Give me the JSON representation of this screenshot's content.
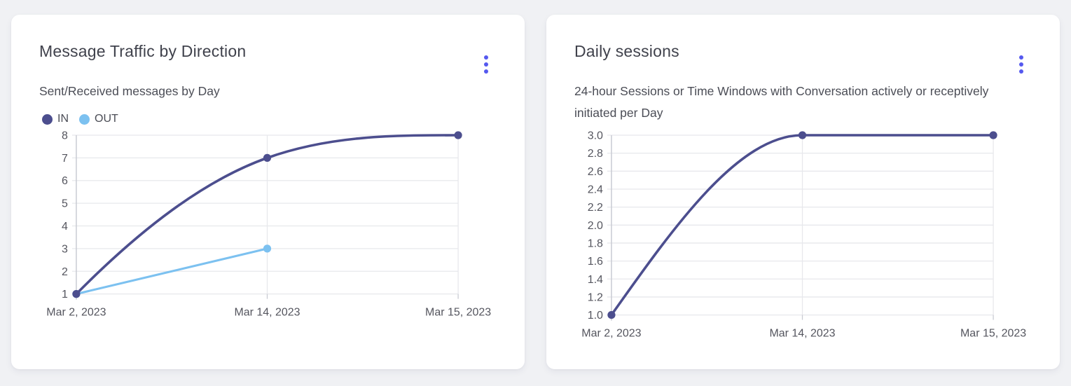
{
  "page_background": "#f0f1f4",
  "accent_color": "#5559ef",
  "cards": [
    {
      "title": "Message Traffic by Direction",
      "subtitle": "Sent/Received messages by Day",
      "menu_icon": "kebab-menu"
    },
    {
      "title": "Daily sessions",
      "subtitle": "24-hour Sessions or Time Windows with Conversation actively or receptively initiated per Day",
      "menu_icon": "kebab-menu"
    }
  ],
  "chart_data": [
    {
      "type": "line",
      "title": "Message Traffic by Direction",
      "subtitle": "Sent/Received messages by Day",
      "categories": [
        "Mar 2, 2023",
        "Mar 14, 2023",
        "Mar 15, 2023"
      ],
      "series": [
        {
          "name": "IN",
          "color": "#4c4e8e",
          "values": [
            1,
            7,
            8
          ]
        },
        {
          "name": "OUT",
          "color": "#7cc1f0",
          "values": [
            1,
            3,
            null
          ]
        }
      ],
      "ylim": [
        1,
        8
      ],
      "tick_step": 1,
      "tick_decimals": 0,
      "y_ticks": [
        1,
        2,
        3,
        4,
        5,
        6,
        7,
        8
      ],
      "grid": true,
      "smooth": true,
      "show_legend": true,
      "legend_position": "top-left",
      "xlabel": "",
      "ylabel": ""
    },
    {
      "type": "line",
      "title": "Daily sessions",
      "subtitle": "24-hour Sessions or Time Windows with Conversation actively or receptively initiated per Day",
      "categories": [
        "Mar 2, 2023",
        "Mar 14, 2023",
        "Mar 15, 2023"
      ],
      "series": [
        {
          "name": "Daily sessions",
          "color": "#4c4e8e",
          "values": [
            1.0,
            3.0,
            3.0
          ]
        }
      ],
      "ylim": [
        1.0,
        3.0
      ],
      "tick_step": 0.2,
      "tick_decimals": 1,
      "y_ticks": [
        1.0,
        1.2,
        1.4,
        1.6,
        1.8,
        2.0,
        2.2,
        2.4,
        2.6,
        2.8,
        3.0
      ],
      "grid": true,
      "smooth": true,
      "show_legend": false,
      "legend_position": "none",
      "xlabel": "",
      "ylabel": ""
    }
  ],
  "theme": {
    "grid_color": "#e7e8ec",
    "axis_color": "#c9cbd3",
    "tick_label_color": "#54555e",
    "point_radius_note": "filled-circle-markers"
  }
}
